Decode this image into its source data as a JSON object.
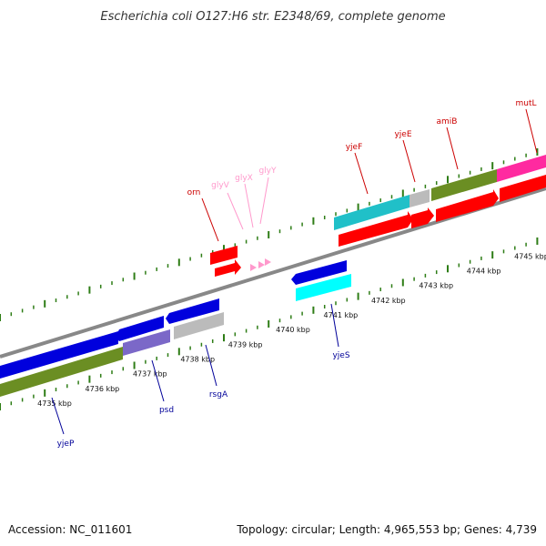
{
  "title": "Escherichia coli O127:H6 str. E2348/69, complete genome",
  "footer": {
    "accession": "Accession: NC_011601",
    "summary": "Topology: circular; Length: 4,965,553 bp; Genes: 4,739"
  },
  "colors": {
    "forward_cds": "#ff0000",
    "reverse_cds": "#0000dd",
    "forward_label": "#cc0000",
    "reverse_label": "#000099",
    "trna": "#ff99cc",
    "backbone": "#888888",
    "tick": "#2e7d16",
    "cog_green": "#6b8e23",
    "cog_cyan": "#20c0c8",
    "cog_magenta": "#ff2aa0",
    "cog_grey": "#bbbbbb",
    "cog_purple": "#7b68c8",
    "cog_brightcyan": "#00ffff"
  },
  "kbp_labels": [
    "4735 kbp",
    "4736 kbp",
    "4737 kbp",
    "4738 kbp",
    "4739 kbp",
    "4740 kbp",
    "4741 kbp",
    "4742 kbp",
    "4743 kbp",
    "4744 kbp",
    "4745 kbp"
  ],
  "forward_genes": [
    "orn",
    "glyV",
    "glyX",
    "glyY",
    "yjeF",
    "yjeE",
    "amiB",
    "mutL"
  ],
  "reverse_genes": [
    "yjeP",
    "psd",
    "rsgA",
    "yjeS"
  ]
}
